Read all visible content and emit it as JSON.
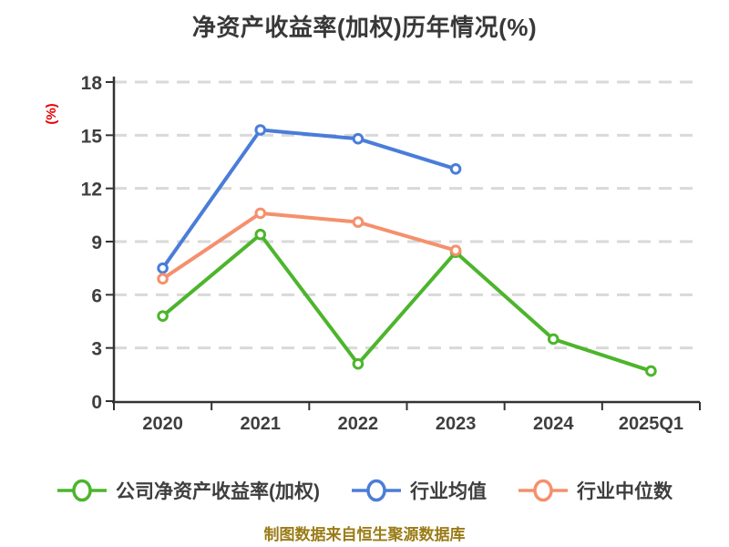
{
  "title": "净资产收益率(加权)历年情况(%)",
  "caption": "制图数据来自恒生聚源数据库",
  "colors": {
    "company": "#4cb52c",
    "industry_mean": "#4a7dd8",
    "industry_median": "#f5906c",
    "ylabel": "#e60000",
    "caption": "#9a7b16",
    "axis": "#333333",
    "tick_label": "#3f3f3f",
    "grid": "#d9d9d9"
  },
  "chart_data": {
    "type": "line",
    "title": "净资产收益率(加权)历年情况(%)",
    "xlabel": "",
    "ylabel": "(%)",
    "categories": [
      "2020",
      "2021",
      "2022",
      "2023",
      "2024",
      "2025Q1"
    ],
    "series": [
      {
        "name": "公司净资产收益率(加权)",
        "color": "#4cb52c",
        "values": [
          4.8,
          9.4,
          2.1,
          8.4,
          3.5,
          1.7
        ]
      },
      {
        "name": "行业均值",
        "color": "#4a7dd8",
        "values": [
          7.5,
          15.3,
          14.8,
          13.1,
          null,
          null
        ]
      },
      {
        "name": "行业中位数",
        "color": "#f5906c",
        "values": [
          6.9,
          10.6,
          10.1,
          8.5,
          null,
          null
        ]
      }
    ],
    "ylim": [
      0,
      18
    ],
    "yticks": [
      0,
      3,
      6,
      9,
      12,
      15,
      18
    ],
    "grid": "horizontal-dashed",
    "legend_position": "bottom",
    "marker": "circle-white-fill"
  }
}
